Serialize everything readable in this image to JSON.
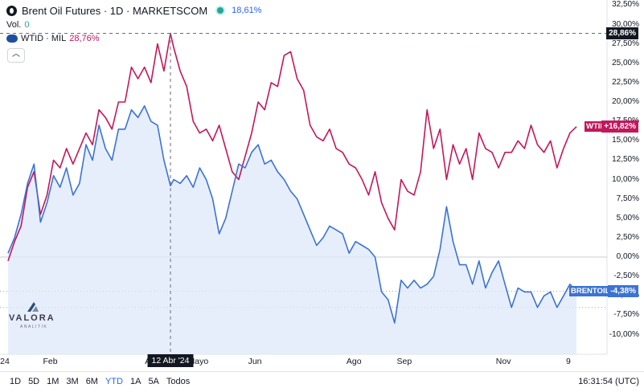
{
  "header": {
    "title": "Brent Oil Futures · 1D · MARKETSCOM",
    "change": "18,61%",
    "vol_label": "Vol.",
    "vol_value": "0",
    "compare_label": "WTID · MIL",
    "compare_value": "28,76%",
    "collapse_icon": "chevron-up-icon"
  },
  "axis": {
    "y_ticks": [
      "32,50%",
      "30,00%",
      "27,50%",
      "25,00%",
      "22,50%",
      "20,00%",
      "17,50%",
      "15,00%",
      "12,50%",
      "10,00%",
      "7,50%",
      "5,00%",
      "2,50%",
      "0,00%",
      "-2,50%",
      "-5,00%",
      "-7,50%",
      "-10,00%"
    ],
    "x_ticks": [
      "24",
      "Feb",
      "A",
      "Mayo",
      "Jun",
      "Ago",
      "Sep",
      "Nov",
      "9"
    ],
    "crosshair_date": "12 Abr '24",
    "crosshair_value": "28,86%"
  },
  "tags": {
    "wtid_label": "WTID",
    "wtid_value": "+16,82%",
    "brent_label": "BRENTOIL",
    "brent_value": "-4,38%"
  },
  "bottom": {
    "ranges": [
      "1D",
      "5D",
      "1M",
      "3M",
      "6M",
      "YTD",
      "1A",
      "5A",
      "Todos"
    ],
    "active_range": "YTD",
    "clock": "16:31:54 (UTC)"
  },
  "logo": {
    "name": "VALORA",
    "sub": "ANALITIK"
  },
  "colors": {
    "brent": "#3b73d4",
    "wtid": "#c2185b",
    "brent_fill": "#e3ecfb",
    "accent": "#2962ff",
    "crosshair_tag": "#131722"
  },
  "chart_data": {
    "type": "line",
    "title": "Brent Oil Futures · 1D · MARKETSCOM",
    "ylabel": "",
    "xlabel": "",
    "ylim": [
      -10,
      32.5
    ],
    "x_unit": "day of year",
    "series": [
      {
        "name": "Brent Oil Futures",
        "color": "#3b73d4",
        "x": [
          1,
          5,
          9,
          13,
          17,
          21,
          25,
          29,
          33,
          37,
          41,
          45,
          49,
          53,
          57,
          61,
          65,
          69,
          73,
          77,
          81,
          85,
          89,
          93,
          97,
          101,
          103,
          107,
          111,
          115,
          119,
          123,
          127,
          131,
          135,
          139,
          143,
          147,
          151,
          155,
          159,
          163,
          167,
          171,
          175,
          179,
          183,
          187,
          191,
          195,
          199,
          203,
          207,
          211,
          215,
          219,
          223,
          227,
          231,
          235,
          239,
          243,
          247,
          251,
          255,
          259,
          263,
          267,
          271,
          275,
          279,
          283,
          287,
          291,
          295,
          299,
          303,
          307,
          311,
          315,
          319,
          323,
          327,
          331,
          335,
          339,
          343,
          347,
          351
        ],
        "y": [
          0.5,
          2.5,
          5.5,
          9.5,
          12,
          4.5,
          7,
          10.5,
          9,
          11.5,
          8,
          9.5,
          14.5,
          12.5,
          17,
          14,
          12.5,
          16.5,
          16.5,
          19,
          18,
          19.5,
          17.5,
          17,
          12.5,
          9.2,
          10,
          9.5,
          10.5,
          9,
          11.5,
          10,
          7.5,
          3,
          5,
          8.5,
          12,
          11.5,
          13.5,
          14.5,
          12,
          12.5,
          11,
          10,
          8.5,
          7.5,
          5.5,
          3.5,
          1.5,
          2.5,
          4,
          3.5,
          3,
          0.5,
          2,
          1.5,
          1,
          0,
          -4.5,
          -5.5,
          -8.5,
          -3,
          -4,
          -3,
          -4,
          -3.5,
          -2.5,
          1,
          6.5,
          2,
          -1,
          -1,
          -3.5,
          -0.5,
          -4,
          -2,
          -0.5,
          -3.5,
          -6.5,
          -4,
          -4.5,
          -4.5,
          -6.5,
          -5,
          -4.5,
          -6.5,
          -5,
          -3.5,
          -4.4
        ]
      },
      {
        "name": "WTID · MIL",
        "color": "#c2185b",
        "x": [
          1,
          5,
          9,
          13,
          17,
          21,
          25,
          29,
          33,
          37,
          41,
          45,
          49,
          53,
          57,
          61,
          65,
          69,
          73,
          77,
          81,
          85,
          89,
          93,
          97,
          101,
          103,
          107,
          111,
          115,
          119,
          123,
          127,
          131,
          135,
          139,
          143,
          147,
          151,
          155,
          159,
          163,
          167,
          171,
          175,
          179,
          183,
          187,
          191,
          195,
          199,
          203,
          207,
          211,
          215,
          219,
          223,
          227,
          231,
          235,
          239,
          243,
          247,
          251,
          255,
          259,
          263,
          267,
          271,
          275,
          279,
          283,
          287,
          291,
          295,
          299,
          303,
          307,
          311,
          315,
          319,
          323,
          327,
          331,
          335,
          339,
          343,
          347,
          351
        ],
        "y": [
          -0.5,
          2,
          4,
          9,
          11,
          5.5,
          8,
          12.5,
          11.5,
          14,
          12,
          14,
          16,
          14.5,
          19,
          18,
          16.5,
          20,
          20,
          24.5,
          23,
          24.5,
          22.5,
          27.5,
          24,
          28.86,
          27,
          24,
          22,
          17.5,
          16,
          16.5,
          15,
          17,
          14,
          11,
          10,
          13,
          16,
          20,
          19,
          22.5,
          22,
          26,
          26.5,
          23,
          21.5,
          17,
          15.5,
          15,
          16.5,
          14,
          13.5,
          12,
          11.5,
          10,
          8,
          11,
          7,
          5,
          3.5,
          10,
          8.5,
          8,
          11,
          19,
          14,
          16.5,
          10,
          14.5,
          12,
          14,
          10,
          16,
          14,
          13.5,
          11.5,
          13.5,
          13.5,
          15,
          14,
          17,
          14.5,
          13.5,
          15,
          11.5,
          14,
          16,
          16.82
        ]
      }
    ]
  }
}
